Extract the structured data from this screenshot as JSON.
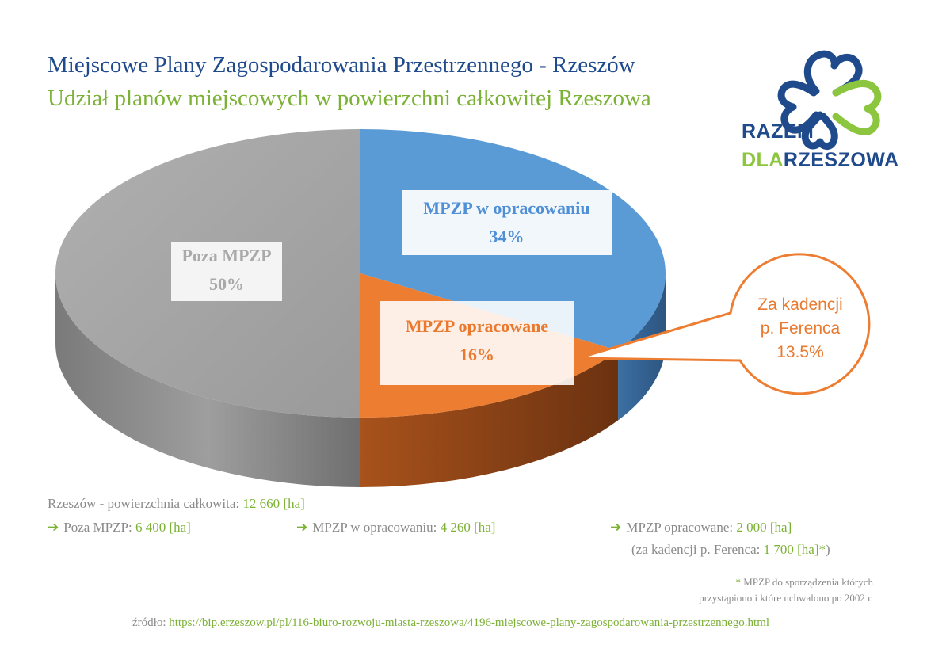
{
  "header": {
    "title": "Miejscowe Plany Zagospodarowania Przestrzennego - Rzeszów",
    "subtitle": "Udział planów miejscowych w powierzchni całkowitej Rzeszowa"
  },
  "logo": {
    "line1": "RAZEM",
    "line2_prefix": "DLA",
    "line2_suffix": "RZESZOWA",
    "icon": "four-heart-clover-icon",
    "colors": {
      "blue": "#1f4a8c",
      "green": "#8cc63f"
    }
  },
  "chart_data": {
    "type": "pie",
    "title": "Udział planów miejscowych w powierzchni całkowitej Rzeszowa",
    "slices": [
      {
        "label": "MPZP w opracowaniu",
        "percent_label": "34%",
        "value": 34,
        "area_label": "4 260 [ha]",
        "color": "#5b9bd5"
      },
      {
        "label": "MPZP opracowane",
        "percent_label": "16%",
        "value": 16,
        "area_label": "2 000 [ha]",
        "color": "#ed7d31"
      },
      {
        "label": "Poza MPZP",
        "percent_label": "50%",
        "value": 50,
        "area_label": "6 400 [ha]",
        "color": "#a5a5a5"
      }
    ],
    "callout": {
      "line1": "Za kadencji",
      "line2": "p. Ferenca",
      "value": "13.5%",
      "color": "#ed7d31"
    }
  },
  "info": {
    "total_label": "Rzeszów - powierzchnia całkowita:",
    "total_value": "12 660 [ha]",
    "arrow": "➔",
    "poza_label": "Poza MPZP:",
    "poza_value": "6 400 [ha]",
    "wopr_label": "MPZP w opracowaniu:",
    "wopr_value": "4 260 [ha]",
    "opr_label": "MPZP opracowane:",
    "opr_value": "2 000 [ha]",
    "ferenc_prefix": "(za kadencji p. Ferenca:",
    "ferenc_value": "1 700 [ha]*",
    "ferenc_suffix": ")"
  },
  "footnote": {
    "star": "*",
    "line1": "MPZP do sporządzenia których",
    "line2": "przystąpiono i które uchwalono po 2002 r."
  },
  "source": {
    "label": "źródło:",
    "url": "https://bip.erzeszow.pl/pl/116-biuro-rozwoju-miasta-rzeszowa/4196-miejscowe-plany-zagospodarowania-przestrzennego.html"
  }
}
